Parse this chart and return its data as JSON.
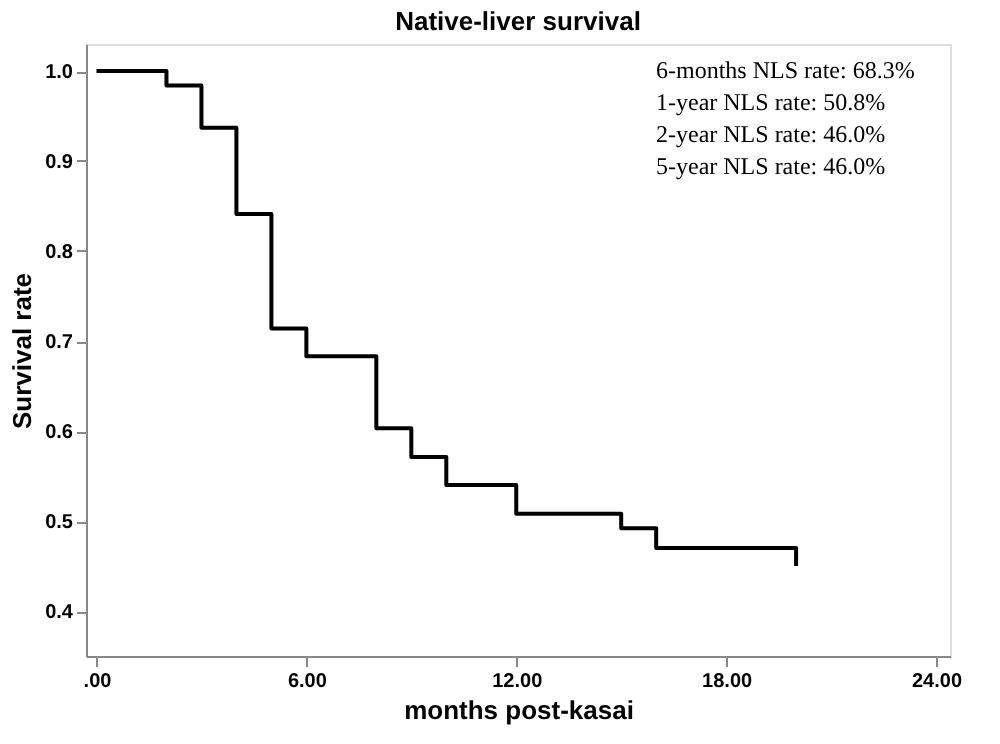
{
  "chart_data": {
    "type": "step",
    "title": "Native-liver survival",
    "xlabel": "months post-kasai",
    "ylabel": "Survival rate",
    "x": [
      0,
      2,
      3,
      4,
      5,
      6,
      8,
      9,
      10,
      12,
      15,
      16,
      20,
      20
    ],
    "series": [
      {
        "color": "#000000",
        "values": [
          1.0,
          0.984,
          0.937,
          0.841,
          0.714,
          0.683,
          0.603,
          0.571,
          0.54,
          0.508,
          0.492,
          0.47,
          0.47,
          0.45
        ]
      }
    ],
    "xlim": [
      -0.3,
      24.4
    ],
    "ylim": [
      0.35,
      1.03
    ],
    "xticks": [
      {
        "value": 0,
        "label": ".00"
      },
      {
        "value": 6,
        "label": "6.00"
      },
      {
        "value": 12,
        "label": "12.00"
      },
      {
        "value": 18,
        "label": "18.00"
      },
      {
        "value": 24,
        "label": "24.00"
      }
    ],
    "yticks": [
      {
        "value": 0.4,
        "label": "0.4"
      },
      {
        "value": 0.5,
        "label": "0.5"
      },
      {
        "value": 0.6,
        "label": "0.6"
      },
      {
        "value": 0.7,
        "label": "0.7"
      },
      {
        "value": 0.8,
        "label": "0.8"
      },
      {
        "value": 0.9,
        "label": "0.9"
      },
      {
        "value": 1.0,
        "label": "1.0"
      }
    ],
    "annotations": [
      "6-months NLS rate: 68.3%",
      "1-year NLS rate: 50.8%",
      "2-year NLS rate: 46.0%",
      "5-year NLS rate: 46.0%"
    ],
    "grid": false,
    "marker": "none",
    "line_style": "solid"
  }
}
